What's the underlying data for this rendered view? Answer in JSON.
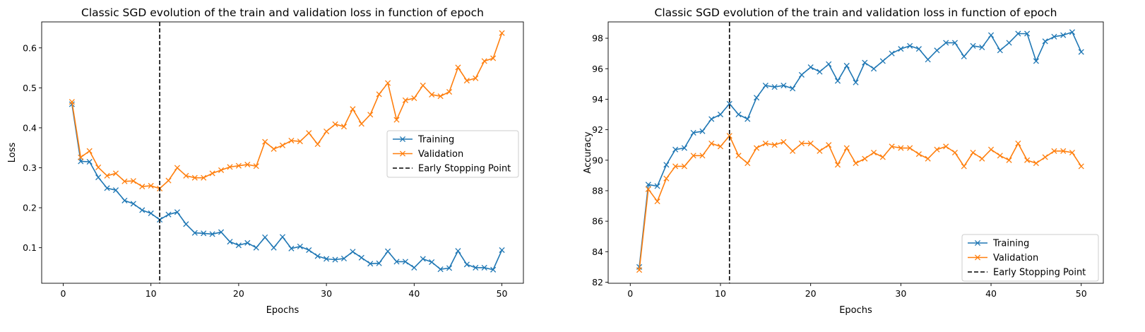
{
  "chart_data": [
    {
      "type": "line",
      "title": "Classic SGD evolution of the train and validation loss in function of epoch",
      "xlabel": "Epochs",
      "ylabel": "Loss",
      "xlim": [
        -2.45,
        52.45
      ],
      "ylim": [
        0.011,
        0.665
      ],
      "xticks": [
        0,
        10,
        20,
        30,
        40,
        50
      ],
      "yticks": [
        0.1,
        0.2,
        0.3,
        0.4,
        0.5,
        0.6
      ],
      "ytick_labels": [
        "0.1",
        "0.2",
        "0.3",
        "0.4",
        "0.5",
        "0.6"
      ],
      "x": [
        1,
        2,
        3,
        4,
        5,
        6,
        7,
        8,
        9,
        10,
        11,
        12,
        13,
        14,
        15,
        16,
        17,
        18,
        19,
        20,
        21,
        22,
        23,
        24,
        25,
        26,
        27,
        28,
        29,
        30,
        31,
        32,
        33,
        34,
        35,
        36,
        37,
        38,
        39,
        40,
        41,
        42,
        43,
        44,
        45,
        46,
        47,
        48,
        49,
        50
      ],
      "series": [
        {
          "name": "Training",
          "color": "#1f77b4",
          "marker": "x",
          "values": [
            0.459,
            0.316,
            0.315,
            0.276,
            0.249,
            0.244,
            0.218,
            0.21,
            0.194,
            0.186,
            0.17,
            0.183,
            0.189,
            0.159,
            0.137,
            0.136,
            0.134,
            0.139,
            0.115,
            0.106,
            0.112,
            0.1,
            0.126,
            0.1,
            0.127,
            0.098,
            0.103,
            0.094,
            0.079,
            0.072,
            0.07,
            0.073,
            0.09,
            0.075,
            0.06,
            0.061,
            0.091,
            0.065,
            0.065,
            0.05,
            0.072,
            0.064,
            0.046,
            0.049,
            0.092,
            0.058,
            0.05,
            0.05,
            0.045,
            0.094
          ]
        },
        {
          "name": "Validation",
          "color": "#ff7f0e",
          "marker": "x",
          "values": [
            0.465,
            0.326,
            0.342,
            0.301,
            0.28,
            0.286,
            0.266,
            0.267,
            0.253,
            0.255,
            0.248,
            0.268,
            0.3,
            0.28,
            0.275,
            0.275,
            0.286,
            0.294,
            0.302,
            0.305,
            0.308,
            0.304,
            0.365,
            0.347,
            0.356,
            0.368,
            0.366,
            0.387,
            0.359,
            0.391,
            0.409,
            0.403,
            0.447,
            0.41,
            0.433,
            0.484,
            0.512,
            0.42,
            0.469,
            0.474,
            0.506,
            0.483,
            0.479,
            0.49,
            0.551,
            0.518,
            0.524,
            0.567,
            0.574,
            0.637
          ]
        }
      ],
      "vline": {
        "name": "Early Stopping Point",
        "x": 11,
        "color": "#000000",
        "style": "dashed"
      },
      "legend": {
        "position": "center-right",
        "entries": [
          "Training",
          "Validation",
          "Early Stopping Point"
        ]
      }
    },
    {
      "type": "line",
      "title": "Classic SGD evolution of the train and validation loss in function of epoch",
      "xlabel": "Epochs",
      "ylabel": "Accuracy",
      "xlim": [
        -2.45,
        52.45
      ],
      "ylim": [
        81.93,
        99.07
      ],
      "xticks": [
        0,
        10,
        20,
        30,
        40,
        50
      ],
      "yticks": [
        82,
        84,
        86,
        88,
        90,
        92,
        94,
        96,
        98
      ],
      "ytick_labels": [
        "82",
        "84",
        "86",
        "88",
        "90",
        "92",
        "94",
        "96",
        "98"
      ],
      "x": [
        1,
        2,
        3,
        4,
        5,
        6,
        7,
        8,
        9,
        10,
        11,
        12,
        13,
        14,
        15,
        16,
        17,
        18,
        19,
        20,
        21,
        22,
        23,
        24,
        25,
        26,
        27,
        28,
        29,
        30,
        31,
        32,
        33,
        34,
        35,
        36,
        37,
        38,
        39,
        40,
        41,
        42,
        43,
        44,
        45,
        46,
        47,
        48,
        49,
        50
      ],
      "series": [
        {
          "name": "Training",
          "color": "#1f77b4",
          "marker": "x",
          "values": [
            83.0,
            88.4,
            88.3,
            89.7,
            90.7,
            90.8,
            91.8,
            91.9,
            92.7,
            93.0,
            93.7,
            93.0,
            92.7,
            94.1,
            94.9,
            94.8,
            94.9,
            94.7,
            95.6,
            96.1,
            95.8,
            96.3,
            95.2,
            96.2,
            95.1,
            96.4,
            96.0,
            96.5,
            97.0,
            97.3,
            97.5,
            97.3,
            96.6,
            97.2,
            97.7,
            97.7,
            96.8,
            97.5,
            97.4,
            98.2,
            97.2,
            97.7,
            98.3,
            98.3,
            96.5,
            97.8,
            98.1,
            98.2,
            98.4,
            97.1
          ]
        },
        {
          "name": "Validation",
          "color": "#ff7f0e",
          "marker": "x",
          "values": [
            82.8,
            88.1,
            87.3,
            88.8,
            89.6,
            89.6,
            90.3,
            90.3,
            91.1,
            90.9,
            91.6,
            90.3,
            89.8,
            90.8,
            91.1,
            91.0,
            91.2,
            90.6,
            91.1,
            91.1,
            90.6,
            91.0,
            89.7,
            90.8,
            89.8,
            90.1,
            90.5,
            90.2,
            90.9,
            90.8,
            90.8,
            90.4,
            90.1,
            90.7,
            90.9,
            90.5,
            89.6,
            90.5,
            90.1,
            90.7,
            90.3,
            90.0,
            91.1,
            90.0,
            89.8,
            90.2,
            90.6,
            90.6,
            90.5,
            89.6
          ]
        }
      ],
      "vline": {
        "name": "Early Stopping Point",
        "x": 11,
        "color": "#000000",
        "style": "dashed"
      },
      "legend": {
        "position": "lower-right",
        "entries": [
          "Training",
          "Validation",
          "Early Stopping Point"
        ]
      }
    }
  ]
}
